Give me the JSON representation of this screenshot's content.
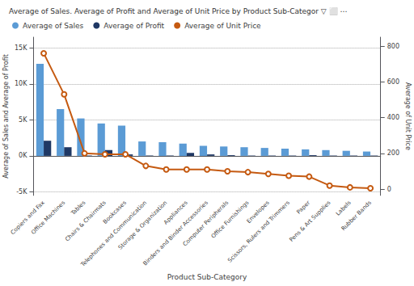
{
  "chart_data": {
    "type": "bar",
    "title": "Average of Sales. Average of Profit and Average of Unit Price by Product Sub-Categor ▽ ⬜ ⋯",
    "xlabel": "Product Sub-Category",
    "ylabel": "Average of Sales and Average of Profit",
    "y2label": "Average of Unit Price",
    "categories": [
      "Copiers and Fax",
      "Office Machines",
      "Tables",
      "Chairs & Chairmats",
      "Bookcases",
      "Telephones and Communication",
      "Storage & Organization",
      "Appliances",
      "Binders and Binder Accessories",
      "Computer Peripherals",
      "Office Furnishings",
      "Envelopes",
      "Scissors, Rulers and Trimmers",
      "Paper",
      "Pens & Art Supplies",
      "Labels",
      "Rubber Bands"
    ],
    "series": [
      {
        "name": "Average of Sales",
        "type": "bar",
        "color": "#5B9BD5",
        "values": [
          12800,
          6500,
          5200,
          4500,
          4200,
          2000,
          1900,
          1700,
          1400,
          1300,
          1200,
          1100,
          1000,
          900,
          800,
          700,
          600
        ]
      },
      {
        "name": "Average of Profit",
        "type": "bar",
        "color": "#1F3864",
        "values": [
          2100,
          1200,
          50,
          800,
          200,
          50,
          50,
          400,
          200,
          100,
          50,
          50,
          50,
          100,
          50,
          50,
          50
        ]
      },
      {
        "name": "Average of Unit Price",
        "type": "line",
        "color": "#C55A11",
        "axis": "y2",
        "values": [
          760,
          530,
          200,
          195,
          195,
          130,
          110,
          110,
          110,
          100,
          95,
          85,
          75,
          70,
          20,
          10,
          5
        ]
      }
    ],
    "ylim": [
      -5500,
      16500
    ],
    "yticks": [
      {
        "value": -5000,
        "label": "-5K"
      },
      {
        "value": 0,
        "label": "0K"
      },
      {
        "value": 5000,
        "label": "5K"
      },
      {
        "value": 10000,
        "label": "10K"
      },
      {
        "value": 15000,
        "label": "15K"
      }
    ],
    "y2lim": [
      -35,
      850
    ],
    "y2ticks": [
      0,
      200,
      400,
      600,
      800
    ],
    "grid": true,
    "legend": "upper left"
  }
}
